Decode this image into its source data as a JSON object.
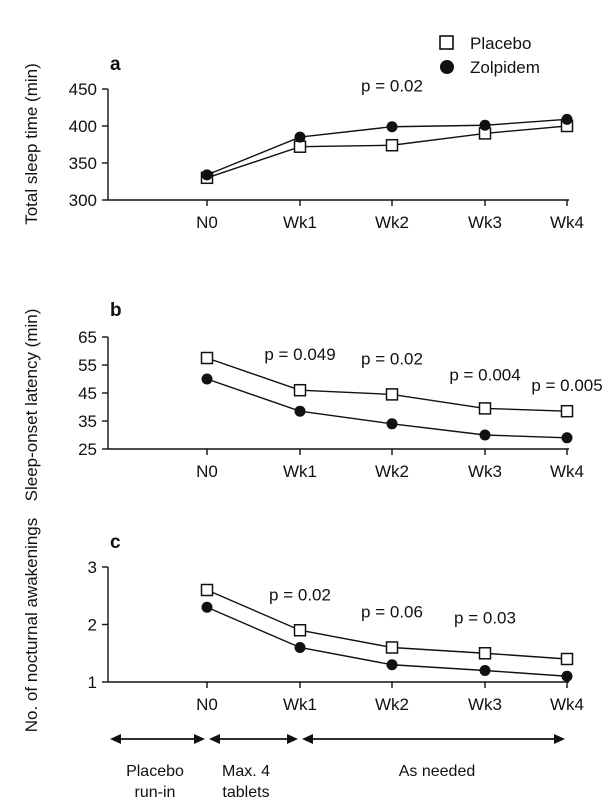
{
  "legend": {
    "placebo": "Placebo",
    "zolpidem": "Zolpidem"
  },
  "colors": {
    "line": "#111111",
    "placebo_fill": "#ffffff",
    "zolpidem_fill": "#111111"
  },
  "chart_data": [
    {
      "type": "line",
      "panel": "a",
      "ylabel": "Total sleep time (min)",
      "categories": [
        "N0",
        "Wk1",
        "Wk2",
        "Wk3",
        "Wk4"
      ],
      "ylim": [
        300,
        450
      ],
      "yticks": [
        300,
        350,
        400,
        450
      ],
      "series": [
        {
          "name": "Placebo",
          "marker": "open-square",
          "values": [
            330,
            372,
            374,
            390,
            400
          ]
        },
        {
          "name": "Zolpidem",
          "marker": "filled-circle",
          "values": [
            334,
            385,
            399,
            401,
            409
          ]
        }
      ],
      "annotations": [
        {
          "category": "Wk2",
          "text": "p = 0.02"
        }
      ]
    },
    {
      "type": "line",
      "panel": "b",
      "ylabel": "Sleep-onset latency (min)",
      "categories": [
        "N0",
        "Wk1",
        "Wk2",
        "Wk3",
        "Wk4"
      ],
      "ylim": [
        25,
        65
      ],
      "yticks": [
        25,
        35,
        45,
        55,
        65
      ],
      "series": [
        {
          "name": "Placebo",
          "marker": "open-square",
          "values": [
            57.5,
            46,
            44.5,
            39.5,
            38.5
          ]
        },
        {
          "name": "Zolpidem",
          "marker": "filled-circle",
          "values": [
            50,
            38.5,
            34,
            30,
            29
          ]
        }
      ],
      "annotations": [
        {
          "category": "Wk1",
          "text": "p = 0.049"
        },
        {
          "category": "Wk2",
          "text": "p = 0.02"
        },
        {
          "category": "Wk3",
          "text": "p = 0.004"
        },
        {
          "category": "Wk4",
          "text": "p = 0.005"
        }
      ]
    },
    {
      "type": "line",
      "panel": "c",
      "ylabel": "No. of nocturnal awakenings",
      "categories": [
        "N0",
        "Wk1",
        "Wk2",
        "Wk3",
        "Wk4"
      ],
      "ylim": [
        1,
        3
      ],
      "yticks": [
        1,
        2,
        3
      ],
      "series": [
        {
          "name": "Placebo",
          "marker": "open-square",
          "values": [
            2.6,
            1.9,
            1.6,
            1.5,
            1.4
          ]
        },
        {
          "name": "Zolpidem",
          "marker": "filled-circle",
          "values": [
            2.3,
            1.6,
            1.3,
            1.2,
            1.1
          ]
        }
      ],
      "annotations": [
        {
          "category": "Wk1",
          "text": "p = 0.02"
        },
        {
          "category": "Wk2",
          "text": "p = 0.06"
        },
        {
          "category": "Wk3",
          "text": "p = 0.03"
        }
      ]
    }
  ],
  "phases": [
    {
      "from": "start",
      "to": "N0",
      "label_lines": [
        "Placebo",
        "run-in"
      ]
    },
    {
      "from": "N0",
      "to": "Wk1",
      "label_lines": [
        "Max. 4",
        "tablets"
      ]
    },
    {
      "from": "Wk1",
      "to": "Wk4",
      "label_lines": [
        "As needed"
      ]
    }
  ]
}
